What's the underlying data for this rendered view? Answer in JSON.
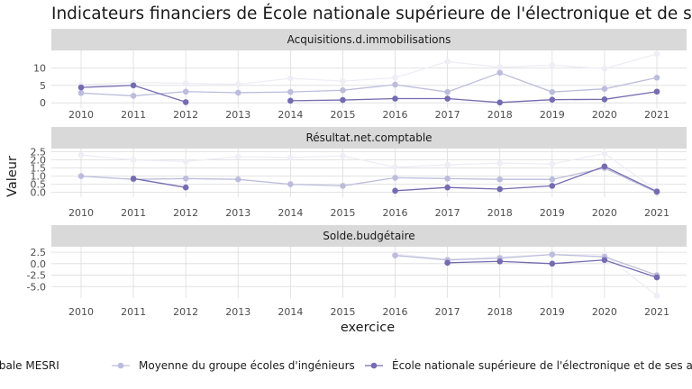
{
  "chart_data": {
    "type": "line",
    "title": "Indicateurs financiers de École nationale supérieure de l'électronique et de ses applications",
    "xlabel": "exercice",
    "ylabel": "Valeur",
    "x": [
      2010,
      2011,
      2012,
      2013,
      2014,
      2015,
      2016,
      2017,
      2018,
      2019,
      2020,
      2021
    ],
    "series_names": [
      "Moyenne globale MESRI",
      "Moyenne du groupe écoles d'ingénieurs",
      "École nationale supérieure de l'électronique et de ses applications"
    ],
    "colors": [
      "#efedf5",
      "#bcbddc",
      "#756bb1"
    ],
    "legend_position": "bottom",
    "grid": true,
    "panels": [
      {
        "strip": "Acquisitions.d.immobilisations",
        "ylim": [
          -1.5,
          15
        ],
        "yticks": [
          0,
          5,
          10
        ],
        "ytick_labels": [
          "0",
          "5",
          "10"
        ],
        "series": [
          {
            "values": [
              5.2,
              5.8,
              5.6,
              5.3,
              7.0,
              6.2,
              7.2,
              11.8,
              10.2,
              10.8,
              9.8,
              14.0
            ]
          },
          {
            "values": [
              2.8,
              2.0,
              3.2,
              2.9,
              3.1,
              3.6,
              5.2,
              3.1,
              8.6,
              3.1,
              4.0,
              7.2
            ]
          },
          {
            "values": [
              4.4,
              5.0,
              0.2,
              null,
              0.6,
              0.8,
              1.2,
              1.2,
              0.1,
              0.9,
              1.0,
              3.2
            ]
          }
        ]
      },
      {
        "strip": "Résultat.net.comptable",
        "ylim": [
          -0.3,
          2.7
        ],
        "yticks": [
          0.0,
          0.5,
          1.0,
          1.5,
          2.0,
          2.5
        ],
        "ytick_labels": [
          "0.0",
          "0.5",
          "1.0",
          "1.5",
          "2.0",
          "2.5"
        ],
        "series": [
          {
            "values": [
              2.3,
              2.0,
              1.9,
              2.2,
              2.15,
              2.25,
              1.55,
              1.7,
              1.8,
              1.75,
              2.4,
              0.1
            ]
          },
          {
            "values": [
              1.0,
              0.8,
              0.85,
              0.8,
              0.5,
              0.4,
              0.9,
              0.85,
              0.8,
              0.8,
              1.5,
              0.0
            ]
          },
          {
            "values": [
              null,
              0.85,
              0.3,
              null,
              null,
              null,
              0.1,
              0.3,
              0.2,
              0.4,
              1.6,
              0.05
            ]
          }
        ]
      },
      {
        "strip": "Solde.budgétaire",
        "ylim": [
          -7.5,
          3.7
        ],
        "yticks": [
          -5.0,
          -2.5,
          0.0,
          2.5
        ],
        "ytick_labels": [
          "-5.0",
          "-2.5",
          "0.0",
          "2.5"
        ],
        "series": [
          {
            "values": [
              null,
              null,
              null,
              null,
              null,
              null,
              2.1,
              1.0,
              1.5,
              2.0,
              2.0,
              -7.0
            ]
          },
          {
            "values": [
              null,
              null,
              null,
              null,
              null,
              null,
              1.8,
              0.8,
              1.2,
              2.0,
              1.5,
              -2.5
            ]
          },
          {
            "values": [
              null,
              null,
              null,
              null,
              null,
              null,
              null,
              0.2,
              0.5,
              0.0,
              0.8,
              -3.0
            ]
          }
        ]
      }
    ]
  }
}
